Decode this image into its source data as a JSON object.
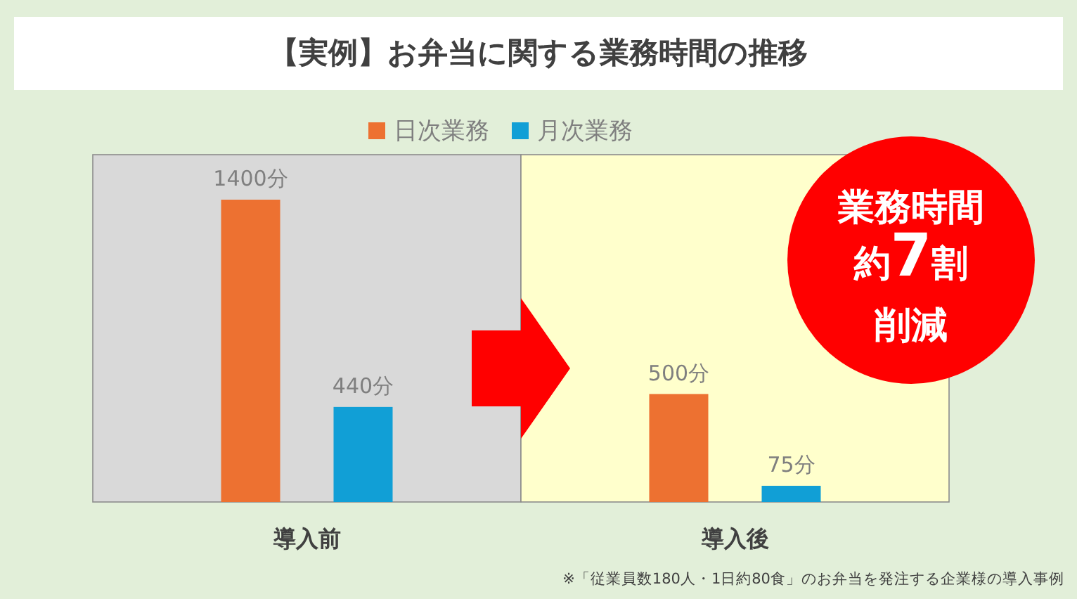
{
  "chart_data": {
    "type": "bar",
    "title": "【実例】お弁当に関する業務時間の推移",
    "categories": [
      "導入前",
      "導入後"
    ],
    "series": [
      {
        "name": "日次業務",
        "color": "#ed7131",
        "values": [
          1400,
          500
        ],
        "value_labels": [
          "1400分",
          "500分"
        ]
      },
      {
        "name": "月次業務",
        "color": "#119fd6",
        "values": [
          440,
          75
        ],
        "value_labels": [
          "440分",
          "75分"
        ]
      }
    ],
    "legend": "top",
    "annotations": [
      "業務時間",
      "約7割",
      "削減",
      "※「従業員数180人・1日約80食」のお弁当を発注する企業様の導入事例"
    ]
  }
}
